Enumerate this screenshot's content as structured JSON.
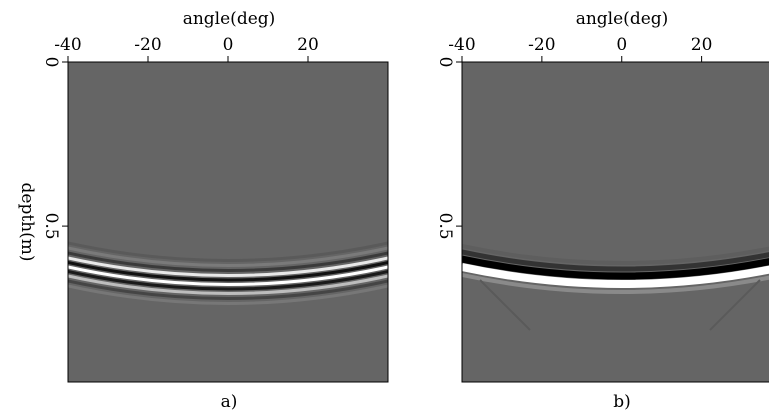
{
  "chart_data": [
    {
      "type": "image",
      "xlabel": "angle(deg)",
      "ylabel": "depth(m)",
      "caption": "a)",
      "xlim": [
        -40,
        40
      ],
      "xticks": [
        -40,
        -20,
        0,
        20
      ],
      "ylim": [
        0,
        0.975
      ],
      "yticks": [
        0,
        0.5
      ]
    },
    {
      "type": "image",
      "xlabel": "angle(deg)",
      "caption": "b)",
      "xlim": [
        -40,
        37
      ],
      "xticks": [
        -40,
        -20,
        0,
        20
      ],
      "ylim": [
        0,
        0.975
      ],
      "yticks": [
        0,
        0.5
      ]
    }
  ]
}
